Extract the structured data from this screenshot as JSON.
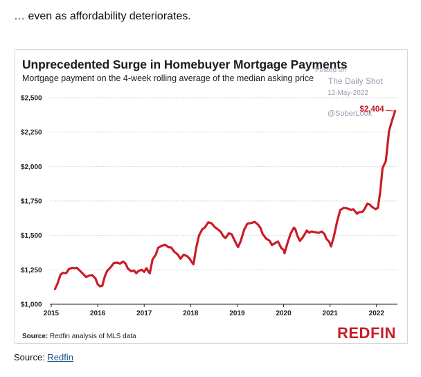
{
  "caption_top": "… even as affordability deteriorates.",
  "caption_bottom": {
    "prefix": "Source: ",
    "link": "Redfin"
  },
  "watermark": {
    "posted": "Posted on",
    "source": "The Daily Shot",
    "date": "12-May-2022",
    "handle": "@SoberLook"
  },
  "logo": "REDFIN",
  "colors": {
    "line": "#c81e28",
    "grid": "#c8c8c8",
    "text": "#1c1c1c"
  },
  "chart_data": {
    "type": "line",
    "title": "Unprecedented Surge in Homebuyer Mortgage Payments",
    "subtitle": "Mortgage payment on the 4-week rolling average of the median asking price",
    "source_label": "Source:",
    "source_text": "Redfin analysis of MLS data",
    "xlabel": "",
    "ylabel": "",
    "xlim": [
      2015,
      2022.55
    ],
    "ylim": [
      1000,
      2500
    ],
    "x_ticks": [
      2015,
      2016,
      2017,
      2018,
      2019,
      2020,
      2021,
      2022
    ],
    "y_ticks": [
      {
        "value": 1000,
        "label": "$1,000"
      },
      {
        "value": 1250,
        "label": "$1,250"
      },
      {
        "value": 1500,
        "label": "$1,500"
      },
      {
        "value": 1750,
        "label": "$1,750"
      },
      {
        "value": 2000,
        "label": "$2,000"
      },
      {
        "value": 2250,
        "label": "$2,250"
      },
      {
        "value": 2500,
        "label": "$2,500"
      }
    ],
    "grid": "horizontal dotted",
    "end_label": "$2,404",
    "series": [
      {
        "name": "",
        "points": [
          [
            2015.08,
            1110
          ],
          [
            2015.13,
            1145
          ],
          [
            2015.2,
            1215
          ],
          [
            2015.25,
            1228
          ],
          [
            2015.32,
            1225
          ],
          [
            2015.38,
            1255
          ],
          [
            2015.45,
            1265
          ],
          [
            2015.5,
            1262
          ],
          [
            2015.55,
            1265
          ],
          [
            2015.62,
            1242
          ],
          [
            2015.7,
            1215
          ],
          [
            2015.75,
            1198
          ],
          [
            2015.82,
            1208
          ],
          [
            2015.88,
            1212
          ],
          [
            2015.95,
            1188
          ],
          [
            2016.0,
            1145
          ],
          [
            2016.05,
            1130
          ],
          [
            2016.1,
            1135
          ],
          [
            2016.15,
            1200
          ],
          [
            2016.2,
            1240
          ],
          [
            2016.28,
            1270
          ],
          [
            2016.35,
            1300
          ],
          [
            2016.42,
            1302
          ],
          [
            2016.48,
            1295
          ],
          [
            2016.55,
            1310
          ],
          [
            2016.6,
            1295
          ],
          [
            2016.65,
            1258
          ],
          [
            2016.72,
            1240
          ],
          [
            2016.78,
            1245
          ],
          [
            2016.83,
            1225
          ],
          [
            2016.88,
            1242
          ],
          [
            2016.95,
            1250
          ],
          [
            2017.0,
            1235
          ],
          [
            2017.05,
            1262
          ],
          [
            2017.1,
            1232
          ],
          [
            2017.12,
            1225
          ],
          [
            2017.18,
            1325
          ],
          [
            2017.25,
            1360
          ],
          [
            2017.3,
            1410
          ],
          [
            2017.38,
            1425
          ],
          [
            2017.45,
            1432
          ],
          [
            2017.52,
            1415
          ],
          [
            2017.58,
            1412
          ],
          [
            2017.65,
            1380
          ],
          [
            2017.72,
            1362
          ],
          [
            2017.78,
            1330
          ],
          [
            2017.85,
            1360
          ],
          [
            2017.92,
            1350
          ],
          [
            2017.98,
            1330
          ],
          [
            2018.02,
            1308
          ],
          [
            2018.06,
            1290
          ],
          [
            2018.12,
            1410
          ],
          [
            2018.18,
            1500
          ],
          [
            2018.25,
            1545
          ],
          [
            2018.3,
            1555
          ],
          [
            2018.38,
            1595
          ],
          [
            2018.45,
            1588
          ],
          [
            2018.52,
            1560
          ],
          [
            2018.58,
            1545
          ],
          [
            2018.65,
            1525
          ],
          [
            2018.7,
            1495
          ],
          [
            2018.75,
            1480
          ],
          [
            2018.82,
            1515
          ],
          [
            2018.88,
            1510
          ],
          [
            2018.95,
            1460
          ],
          [
            2019.02,
            1415
          ],
          [
            2019.08,
            1460
          ],
          [
            2019.15,
            1540
          ],
          [
            2019.22,
            1585
          ],
          [
            2019.3,
            1590
          ],
          [
            2019.38,
            1598
          ],
          [
            2019.45,
            1578
          ],
          [
            2019.5,
            1555
          ],
          [
            2019.55,
            1510
          ],
          [
            2019.62,
            1478
          ],
          [
            2019.7,
            1460
          ],
          [
            2019.75,
            1430
          ],
          [
            2019.82,
            1445
          ],
          [
            2019.88,
            1455
          ],
          [
            2019.95,
            1408
          ],
          [
            2020.0,
            1395
          ],
          [
            2020.02,
            1370
          ],
          [
            2020.08,
            1440
          ],
          [
            2020.15,
            1512
          ],
          [
            2020.22,
            1555
          ],
          [
            2020.25,
            1548
          ],
          [
            2020.3,
            1495
          ],
          [
            2020.35,
            1460
          ],
          [
            2020.42,
            1490
          ],
          [
            2020.5,
            1535
          ],
          [
            2020.55,
            1520
          ],
          [
            2020.6,
            1528
          ],
          [
            2020.7,
            1522
          ],
          [
            2020.75,
            1518
          ],
          [
            2020.82,
            1528
          ],
          [
            2020.88,
            1510
          ],
          [
            2020.92,
            1475
          ],
          [
            2020.98,
            1455
          ],
          [
            2021.02,
            1420
          ],
          [
            2021.08,
            1490
          ],
          [
            2021.15,
            1600
          ],
          [
            2021.22,
            1685
          ],
          [
            2021.3,
            1700
          ],
          [
            2021.38,
            1695
          ],
          [
            2021.45,
            1685
          ],
          [
            2021.5,
            1690
          ],
          [
            2021.58,
            1658
          ],
          [
            2021.62,
            1668
          ],
          [
            2021.7,
            1672
          ],
          [
            2021.75,
            1695
          ],
          [
            2021.8,
            1730
          ],
          [
            2021.85,
            1725
          ],
          [
            2021.9,
            1708
          ],
          [
            2021.98,
            1690
          ],
          [
            2022.03,
            1700
          ],
          [
            2022.08,
            1820
          ],
          [
            2022.13,
            1990
          ],
          [
            2022.2,
            2040
          ],
          [
            2022.27,
            2260
          ],
          [
            2022.33,
            2330
          ],
          [
            2022.4,
            2404
          ]
        ]
      }
    ]
  }
}
